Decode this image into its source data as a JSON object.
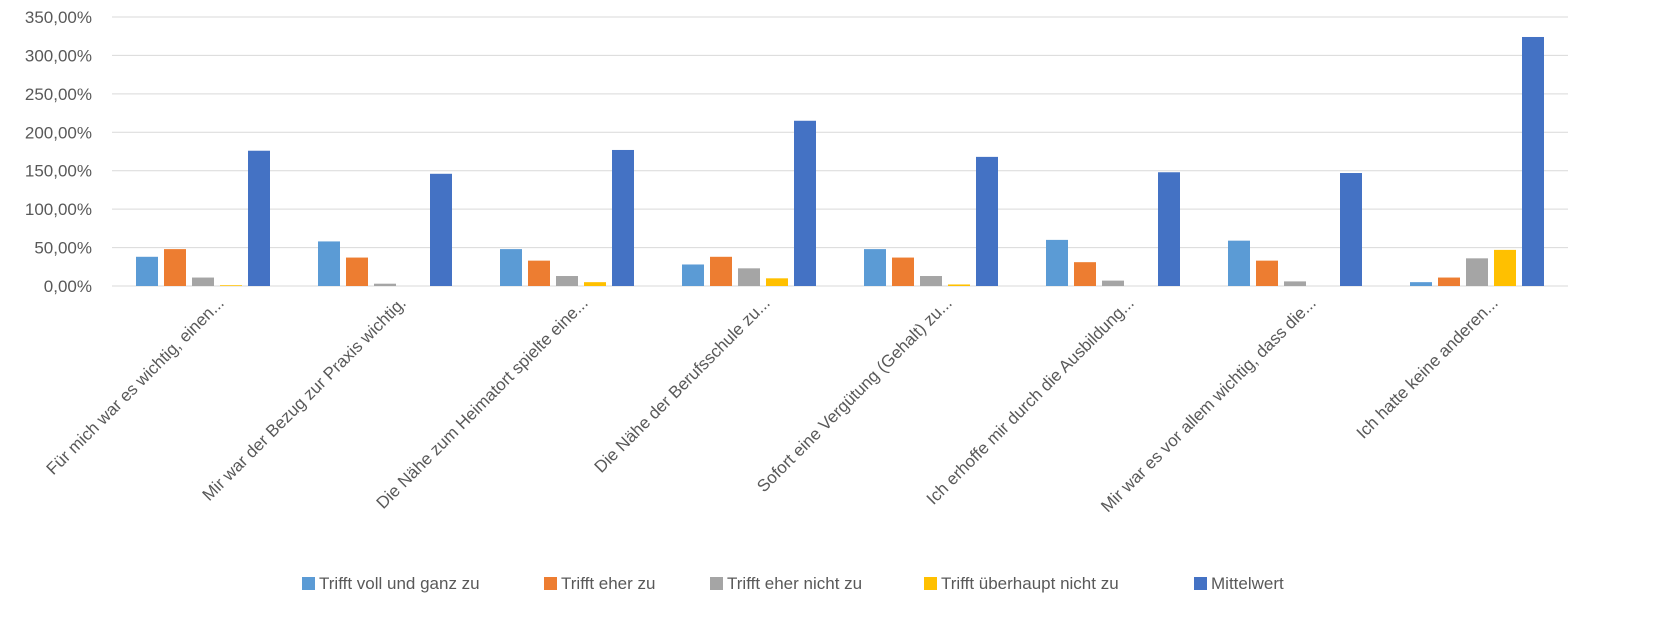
{
  "chart_data": {
    "type": "bar",
    "categories": [
      "Für mich war es wichtig, einen...",
      "Mir war der Bezug zur Praxis wichtig.",
      "Die Nähe zum Heimatort spielte eine...",
      "Die Nähe der Berufsschule zu...",
      "Sofort eine Vergütung (Gehalt) zu...",
      "Ich erhoffe mir durch die Ausbildung...",
      "Mir war es vor allem wichtig, dass die...",
      "Ich hatte keine anderen..."
    ],
    "series": [
      {
        "name": "Trifft voll und ganz zu",
        "color": "#5B9BD5",
        "values": [
          38,
          58,
          48,
          28,
          48,
          60,
          59,
          5
        ]
      },
      {
        "name": "Trifft eher zu",
        "color": "#ED7D31",
        "values": [
          48,
          37,
          33,
          38,
          37,
          31,
          33,
          11
        ]
      },
      {
        "name": "Trifft eher nicht zu",
        "color": "#A5A5A5",
        "values": [
          11,
          3,
          13,
          23,
          13,
          7,
          6,
          36
        ]
      },
      {
        "name": "Trifft überhaupt nicht zu",
        "color": "#FFC000",
        "values": [
          1,
          0,
          5,
          10,
          2,
          0,
          0,
          47
        ]
      },
      {
        "name": "Mittelwert",
        "color": "#4472C4",
        "values": [
          176,
          146,
          177,
          215,
          168,
          148,
          147,
          324
        ]
      }
    ],
    "y_ticks": [
      "0,00%",
      "50,00%",
      "100,00%",
      "150,00%",
      "200,00%",
      "250,00%",
      "300,00%",
      "350,00%"
    ],
    "ylim": [
      0,
      350
    ],
    "y_unit": "%",
    "grid": true,
    "legend_position": "bottom"
  }
}
